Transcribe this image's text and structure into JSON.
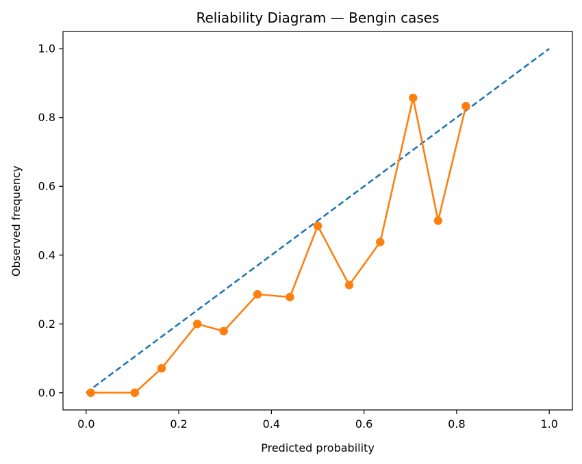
{
  "chart_data": {
    "type": "line",
    "title": "Reliability Diagram — Bengin cases",
    "xlabel": "Predicted probability",
    "ylabel": "Observed frequency",
    "xlim": [
      -0.05,
      1.05
    ],
    "ylim": [
      -0.05,
      1.05
    ],
    "xticks": [
      0.0,
      0.2,
      0.4,
      0.6,
      0.8,
      1.0
    ],
    "xtick_labels": [
      "0.0",
      "0.2",
      "0.4",
      "0.6",
      "0.8",
      "1.0"
    ],
    "yticks": [
      0.0,
      0.2,
      0.4,
      0.6,
      0.8,
      1.0
    ],
    "ytick_labels": [
      "0.0",
      "0.2",
      "0.4",
      "0.6",
      "0.8",
      "1.0"
    ],
    "grid": false,
    "legend": null,
    "series": [
      {
        "style": "dashed",
        "color": "#1f77b4",
        "x": [
          0.0,
          1.0
        ],
        "y": [
          0.0,
          1.0
        ]
      },
      {
        "style": "line-markers",
        "color": "#ff7f0e",
        "x": [
          0.01,
          0.105,
          0.163,
          0.24,
          0.297,
          0.37,
          0.44,
          0.5,
          0.568,
          0.635,
          0.706,
          0.76,
          0.82
        ],
        "y": [
          0.0,
          0.0,
          0.071,
          0.2,
          0.179,
          0.286,
          0.278,
          0.485,
          0.313,
          0.438,
          0.857,
          0.5,
          0.833
        ]
      }
    ]
  }
}
